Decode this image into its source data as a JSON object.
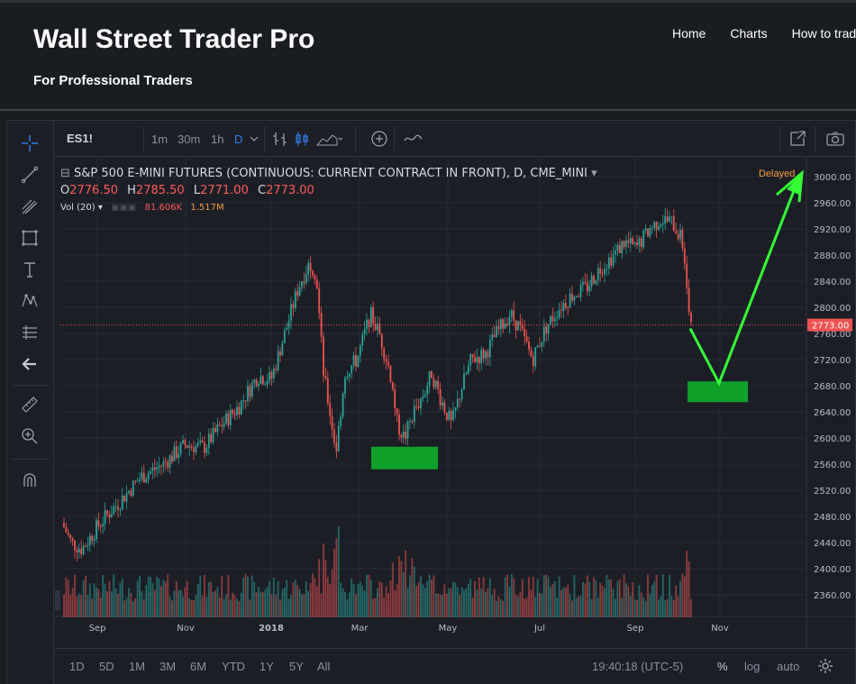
{
  "site": {
    "title": "Wall Street Trader Pro",
    "tagline": "For Professional Traders",
    "nav": [
      "Home",
      "Charts",
      "How to trade"
    ]
  },
  "toolbar": {
    "symbol": "ES1!",
    "intervals": [
      "1m",
      "30m",
      "1h",
      "D"
    ],
    "active_interval": "D"
  },
  "legend": {
    "title": "S&P 500 E-MINI FUTURES (CONTINUOUS: CURRENT CONTRACT IN FRONT), D, CME_MINI",
    "open": "2776.50",
    "high": "2785.50",
    "low": "2771.00",
    "close": "2773.00",
    "volume_label": "Vol (20)",
    "volume_value": "81.606K",
    "volume_ma": "1.517M",
    "status": "Delayed"
  },
  "price_axis": {
    "ticks": [
      "3000.00",
      "2960.00",
      "2920.00",
      "2880.00",
      "2840.00",
      "2800.00",
      "2760.00",
      "2720.00",
      "2680.00",
      "2640.00",
      "2600.00",
      "2560.00",
      "2520.00",
      "2480.00",
      "2440.00",
      "2400.00",
      "2360.00"
    ],
    "last_price": "2773.00"
  },
  "time_axis": {
    "ticks": [
      "Sep",
      "Nov",
      "2018",
      "Mar",
      "May",
      "Jul",
      "Sep",
      "Nov"
    ]
  },
  "bottom": {
    "ranges": [
      "1D",
      "5D",
      "1M",
      "3M",
      "6M",
      "YTD",
      "1Y",
      "5Y",
      "All"
    ],
    "clock": "19:40:18 (UTC-5)",
    "percent": "%",
    "log": "log",
    "auto": "auto"
  },
  "colors": {
    "up": "#26a69a",
    "down": "#ef5350",
    "arrow": "#33ff33",
    "box": "#0fa12a",
    "background": "#1c1e26"
  },
  "chart_data": {
    "type": "candlestick",
    "symbol": "ES1!",
    "ylim": [
      2320,
      3020
    ],
    "key_closes": [
      {
        "date": "2017-07",
        "price": 2470
      },
      {
        "date": "2017-08",
        "price": 2440
      },
      {
        "date": "2017-09",
        "price": 2500
      },
      {
        "date": "2017-10",
        "price": 2560
      },
      {
        "date": "2017-11",
        "price": 2600
      },
      {
        "date": "2017-12",
        "price": 2680
      },
      {
        "date": "2018-01",
        "price": 2870
      },
      {
        "date": "2018-02",
        "price": 2580
      },
      {
        "date": "2018-03",
        "price": 2780
      },
      {
        "date": "2018-04",
        "price": 2600
      },
      {
        "date": "2018-05",
        "price": 2720
      },
      {
        "date": "2018-06",
        "price": 2770
      },
      {
        "date": "2018-07",
        "price": 2810
      },
      {
        "date": "2018-08",
        "price": 2900
      },
      {
        "date": "2018-09",
        "price": 2930
      },
      {
        "date": "2018-10",
        "price": 2773
      }
    ],
    "annotations": {
      "support_box_1_price": 2570,
      "support_box_2_price": 2670,
      "arrow_target_price": 3000
    }
  }
}
